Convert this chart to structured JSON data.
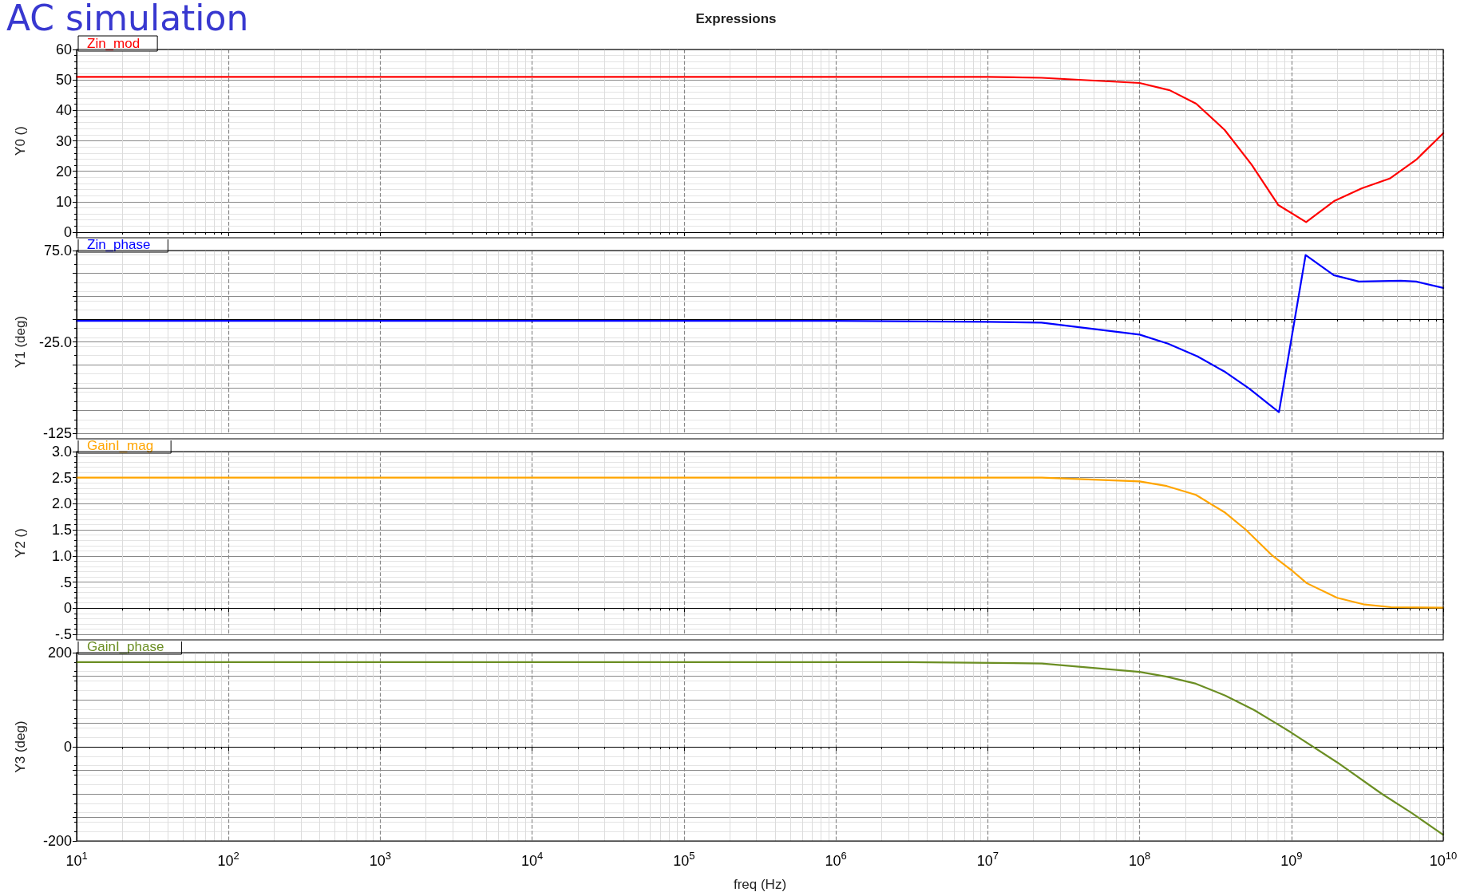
{
  "chart_data": [
    {
      "type": "line",
      "title": "Expressions",
      "annotations": [
        "AC simulation"
      ],
      "ylabel": "Y0 ()",
      "legend": "top left",
      "grid": true,
      "marker": "none",
      "line_style": "solid",
      "log": "x",
      "tick_labels": "y",
      "xlim": [
        10,
        10000000000
      ],
      "xticks": [
        {
          "value": 10,
          "label": null
        },
        {
          "value": 100,
          "label": null
        },
        {
          "value": 1000,
          "label": null
        },
        {
          "value": 10000,
          "label": null
        },
        {
          "value": 100000,
          "label": null
        },
        {
          "value": 1000000,
          "label": null
        },
        {
          "value": 10000000,
          "label": null
        },
        {
          "value": 100000000,
          "label": null
        },
        {
          "value": 1000000000,
          "label": null
        },
        {
          "value": 10000000000,
          "label": null
        }
      ],
      "ylim": [
        0,
        60
      ],
      "yticks": [
        0,
        10,
        20,
        30,
        40,
        50,
        60
      ],
      "series": [
        {
          "name": "Zin_mod",
          "color": "#ff0000",
          "x": [
            10,
            10000000,
            22600000,
            100000000,
            158000000,
            236000000,
            363000000,
            548000000,
            820000000,
            1250000000,
            1910000000,
            2910000000,
            4440000000,
            6640000000,
            10000000000
          ],
          "values": [
            51,
            51,
            50.7,
            49,
            46.6,
            42.2,
            33.6,
            22.1,
            8.9,
            3.3,
            10.2,
            14.4,
            17.6,
            23.8,
            32.5
          ]
        }
      ]
    },
    {
      "type": "line",
      "ylabel": "Y1 (deg)",
      "legend": "top left",
      "grid": true,
      "marker": "none",
      "line_style": "solid",
      "log": "x",
      "tick_labels": "y",
      "xlim": [
        10,
        10000000000
      ],
      "xticks": [
        {
          "value": 10,
          "label": null
        },
        {
          "value": 100,
          "label": null
        },
        {
          "value": 1000,
          "label": null
        },
        {
          "value": 10000,
          "label": null
        },
        {
          "value": 100000,
          "label": null
        },
        {
          "value": 1000000,
          "label": null
        },
        {
          "value": 10000000,
          "label": null
        },
        {
          "value": 100000000,
          "label": null
        },
        {
          "value": 1000000000,
          "label": null
        },
        {
          "value": 10000000000,
          "label": null
        }
      ],
      "ylim": [
        -125,
        75
      ],
      "yticks": [
        {
          "value": -125,
          "label": "-125"
        },
        {
          "value": -100,
          "label": null
        },
        {
          "value": -75,
          "label": null
        },
        {
          "value": -50,
          "label": null
        },
        {
          "value": -25,
          "label": "-25.0"
        },
        {
          "value": 0,
          "label": null
        },
        {
          "value": 25,
          "label": null
        },
        {
          "value": 50,
          "label": null
        },
        {
          "value": 75,
          "label": "75.0"
        }
      ],
      "series": [
        {
          "name": "Zin_phase",
          "color": "#0000ff",
          "x": [
            10,
            1000000,
            10000000,
            22600000,
            100000000,
            154000000,
            241000000,
            367000000,
            526000000,
            828000000,
            1240000000,
            1900000000,
            2780000000,
            5250000000,
            6640000000,
            10000000000
          ],
          "values": [
            -2,
            -2,
            -3,
            -4,
            -17,
            -27,
            -41,
            -58,
            -76,
            -102,
            70,
            48,
            41,
            42,
            41,
            34
          ]
        }
      ]
    },
    {
      "type": "line",
      "ylabel": "Y2 ()",
      "legend": "top left",
      "grid": true,
      "marker": "none",
      "line_style": "solid",
      "log": "x",
      "tick_labels": "y",
      "xlim": [
        10,
        10000000000
      ],
      "xticks": [
        {
          "value": 10,
          "label": null
        },
        {
          "value": 100,
          "label": null
        },
        {
          "value": 1000,
          "label": null
        },
        {
          "value": 10000,
          "label": null
        },
        {
          "value": 100000,
          "label": null
        },
        {
          "value": 1000000,
          "label": null
        },
        {
          "value": 10000000,
          "label": null
        },
        {
          "value": 100000000,
          "label": null
        },
        {
          "value": 1000000000,
          "label": null
        },
        {
          "value": 10000000000,
          "label": null
        }
      ],
      "ylim": [
        -0.5,
        3
      ],
      "yticks": [
        {
          "value": -0.5,
          "label": "-.5"
        },
        0,
        {
          "value": 0.5,
          "label": ".5"
        },
        {
          "value": 1,
          "label": "1.0"
        },
        {
          "value": 1.5,
          "label": "1.5"
        },
        {
          "value": 2,
          "label": "2.0"
        },
        {
          "value": 2.5,
          "label": "2.5"
        },
        {
          "value": 3,
          "label": "3.0"
        }
      ],
      "series": [
        {
          "name": "GainI_mag",
          "color": "#ffa500",
          "x": [
            10,
            10000000,
            22700000,
            100000000,
            151000000,
            235000000,
            366000000,
            498000000,
            741000000,
            1000000000,
            1260000000,
            2000000000,
            3030000000,
            4520000000,
            10000000000
          ],
          "values": [
            2.5,
            2.5,
            2.5,
            2.43,
            2.34,
            2.17,
            1.83,
            1.51,
            1.02,
            0.73,
            0.48,
            0.2,
            0.07,
            0.02,
            0.01
          ]
        }
      ]
    },
    {
      "type": "line",
      "ylabel": "Y3 (deg)",
      "xlabel": "freq (Hz)",
      "legend": "top left",
      "grid": true,
      "marker": "none",
      "line_style": "solid",
      "log": "x",
      "xlim": [
        10,
        10000000000
      ],
      "xticks": [
        {
          "value": 10,
          "label": "10$^{1}$"
        },
        {
          "value": 100,
          "label": "10$^{2}$"
        },
        {
          "value": 1000,
          "label": "10$^{3}$"
        },
        {
          "value": 10000,
          "label": "10$^{4}$"
        },
        {
          "value": 100000,
          "label": "10$^{5}$"
        },
        {
          "value": 1000000,
          "label": "10$^{6}$"
        },
        {
          "value": 10000000,
          "label": "10$^{7}$"
        },
        {
          "value": 100000000,
          "label": "10$^{8}$"
        },
        {
          "value": 1000000000,
          "label": "10$^{9}$"
        },
        {
          "value": 10000000000,
          "label": "10$^{10}$"
        }
      ],
      "ylim": [
        -200,
        200
      ],
      "yticks": [
        {
          "value": -200,
          "label": "-200"
        },
        {
          "value": -150,
          "label": null
        },
        {
          "value": -100,
          "label": null
        },
        {
          "value": -50,
          "label": null
        },
        0,
        {
          "value": 50,
          "label": null
        },
        {
          "value": 100,
          "label": null
        },
        {
          "value": 150,
          "label": null
        },
        {
          "value": 200,
          "label": "200"
        }
      ],
      "series": [
        {
          "name": "GainI_phase",
          "color": "#6b8e23",
          "x": [
            10,
            1000000,
            3000000,
            22700000,
            100000000,
            151000000,
            235000000,
            366000000,
            569000000,
            774000000,
            1000000000,
            2000000000,
            3940000000,
            6160000000,
            10000000000
          ],
          "values": [
            180,
            180,
            180,
            177,
            159,
            149,
            134,
            109,
            78,
            52,
            30,
            -33,
            -100,
            -140,
            -187
          ]
        }
      ]
    }
  ]
}
